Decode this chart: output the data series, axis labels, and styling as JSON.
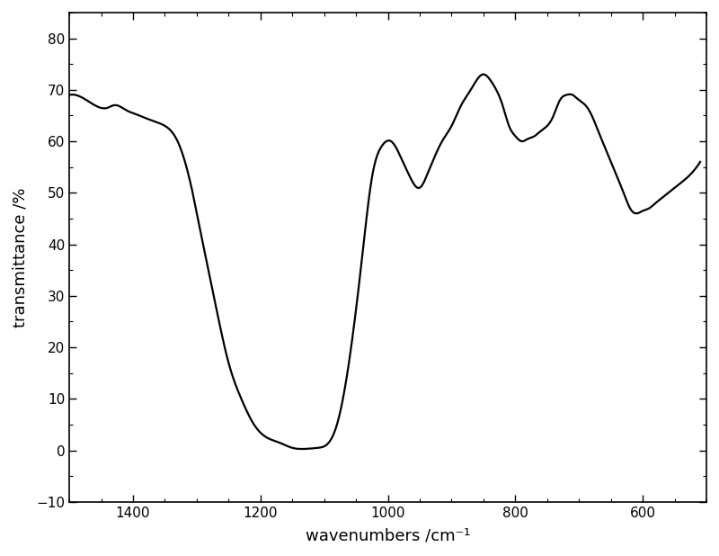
{
  "title": "",
  "xlabel": "wavenumbers /cm⁻¹",
  "ylabel": "transmittance /%",
  "xlim": [
    1500,
    500
  ],
  "ylim": [
    -10,
    85
  ],
  "yticks": [
    -10,
    0,
    10,
    20,
    30,
    40,
    50,
    60,
    70,
    80
  ],
  "xticks": [
    1400,
    1200,
    1000,
    800,
    600
  ],
  "line_color": "#000000",
  "line_width": 1.6,
  "background_color": "#ffffff",
  "keypoints_x": [
    1500,
    1480,
    1460,
    1440,
    1430,
    1410,
    1390,
    1370,
    1350,
    1330,
    1310,
    1290,
    1270,
    1250,
    1230,
    1210,
    1190,
    1170,
    1150,
    1130,
    1110,
    1090,
    1080,
    1060,
    1040,
    1025,
    1010,
    995,
    980,
    965,
    950,
    940,
    930,
    915,
    900,
    885,
    870,
    860,
    850,
    840,
    830,
    820,
    810,
    800,
    790,
    780,
    770,
    760,
    750,
    740,
    730,
    720,
    710,
    700,
    690,
    680,
    670,
    660,
    650,
    640,
    630,
    620,
    610,
    600,
    590,
    580,
    570,
    560,
    550,
    530,
    510
  ],
  "keypoints_y": [
    69,
    68.5,
    67,
    66.5,
    67,
    66,
    65,
    64,
    63,
    60,
    52,
    40,
    28,
    17,
    10,
    5,
    2.5,
    1.5,
    0.5,
    0.3,
    0.5,
    2,
    5,
    18,
    38,
    53,
    59,
    60,
    57,
    53,
    51,
    53,
    56,
    60,
    63,
    67,
    70,
    72,
    73,
    72,
    70,
    67,
    63,
    61,
    60,
    60.5,
    61,
    62,
    63,
    65,
    68,
    69,
    69,
    68,
    67,
    65,
    62,
    59,
    56,
    53,
    50,
    47,
    46,
    46.5,
    47,
    48,
    49,
    50,
    51,
    53,
    56
  ]
}
